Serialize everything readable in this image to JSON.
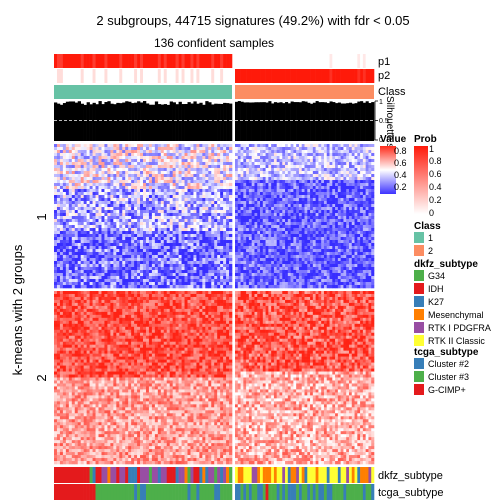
{
  "chart_data": {
    "type": "heatmap",
    "title": "2 subgroups, 44715 signatures (49.2%) with fdr < 0.05",
    "subtitle": "136 confident samples",
    "ylabel": "k-means with 2 groups",
    "row_groups": [
      "1",
      "2"
    ],
    "column_groups": [
      "1",
      "2"
    ],
    "top_annotations": [
      "p1",
      "p2",
      "Class",
      "Silhouette score"
    ],
    "silhouette_ticks": [
      "1",
      "0.5",
      "0"
    ],
    "bottom_annotations": [
      "dkfz_subtype",
      "tcga_subtype"
    ],
    "value_legend": {
      "title": "Value",
      "ticks": [
        "0.8",
        "0.6",
        "0.4",
        "0.2"
      ],
      "range": [
        0.1,
        0.9
      ]
    },
    "prob_legend": {
      "title": "Prob",
      "ticks": [
        "1",
        "0.8",
        "0.6",
        "0.4",
        "0.2",
        "0"
      ],
      "range": [
        0,
        1
      ]
    },
    "class_legend": {
      "title": "Class",
      "items": [
        {
          "label": "1",
          "color": "#66C2A5"
        },
        {
          "label": "2",
          "color": "#FC8D62"
        }
      ]
    },
    "dkfz_legend": {
      "title": "dkfz_subtype",
      "items": [
        {
          "label": "G34",
          "color": "#4DAF4A"
        },
        {
          "label": "IDH",
          "color": "#E41A1C"
        },
        {
          "label": "K27",
          "color": "#377EB8"
        },
        {
          "label": "Mesenchymal",
          "color": "#FF7F00"
        },
        {
          "label": "RTK I PDGFRA",
          "color": "#984EA3"
        },
        {
          "label": "RTK II Classic",
          "color": "#FFFF33"
        }
      ]
    },
    "tcga_legend": {
      "title": "tcga_subtype",
      "items": [
        {
          "label": "Cluster #2",
          "color": "#377EB8"
        },
        {
          "label": "Cluster #3",
          "color": "#4DAF4A"
        },
        {
          "label": "G-CIMP+",
          "color": "#E41A1C"
        }
      ]
    }
  }
}
